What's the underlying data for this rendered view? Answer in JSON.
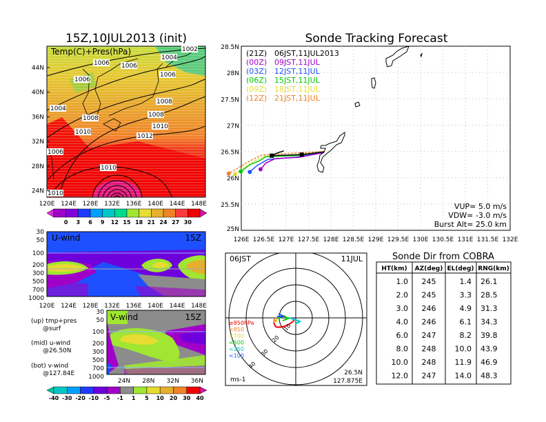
{
  "left_map": {
    "title": "15Z,10JUL2013 (init)",
    "subtitle": "Temp(C)+Pres(hPa)",
    "lat_ticks": [
      "44N",
      "40N",
      "36N",
      "32N",
      "28N",
      "24N"
    ],
    "lon_ticks": [
      "120E",
      "124E",
      "128E",
      "132E",
      "136E",
      "140E",
      "144E",
      "148E"
    ],
    "colorbar_labels": [
      "0",
      "3",
      "6",
      "9",
      "12",
      "15",
      "18",
      "21",
      "24",
      "27",
      "30"
    ],
    "colorbar_colors": [
      "#a000c8",
      "#8200dc",
      "#1e3cff",
      "#00a0ff",
      "#00c8c8",
      "#00dc8c",
      "#a0e632",
      "#e6dc32",
      "#e6af2d",
      "#f08228",
      "#fa3c3c",
      "#f00000"
    ],
    "contour_labels": [
      "1002",
      "1004",
      "1006",
      "1006",
      "1006",
      "1006",
      "1004",
      "1008",
      "1008",
      "1010",
      "1008",
      "1010",
      "1012",
      "1006",
      "1010",
      "1010"
    ]
  },
  "u_wind": {
    "title": "U-wind",
    "time": "15Z",
    "p_ticks": [
      "30",
      "50",
      "100",
      "200",
      "300",
      "500",
      "700",
      "1000"
    ],
    "lon_ticks": [
      "120E",
      "124E",
      "128E",
      "132E",
      "136E",
      "140E",
      "144E",
      "148E"
    ]
  },
  "v_wind": {
    "title": "V-wind",
    "time": "15Z",
    "p_ticks": [
      "30",
      "50",
      "100",
      "200",
      "300",
      "500",
      "700",
      "1000"
    ],
    "lat_ticks": [
      "24N",
      "28N",
      "32N",
      "36N"
    ]
  },
  "panel_legend": {
    "up": "(up) tmp+pres",
    "up_sub": "@surf",
    "mid": "(mid) u-wind",
    "mid_sub": "@26.50N",
    "bot": "(bot) v-wind",
    "bot_sub": "@127.84E"
  },
  "wind_colorbar": {
    "labels": [
      "-40",
      "-30",
      "-20",
      "-10",
      "-5",
      "-1",
      "1",
      "5",
      "10",
      "20",
      "30",
      "40"
    ],
    "colors": [
      "#00c8c8",
      "#00a0ff",
      "#1e3cff",
      "#6e00dc",
      "#a000c8",
      "#8c8c8c",
      "#a0e632",
      "#e6dc32",
      "#e6af2d",
      "#f08228",
      "#f00000"
    ]
  },
  "chart_data": {
    "type": "line",
    "title": "Sonde Tracking Forecast",
    "xlim": [
      126,
      132
    ],
    "ylim": [
      25,
      28.5
    ],
    "x_ticks": [
      "126E",
      "126.5E",
      "127E",
      "127.5E",
      "128E",
      "128.5E",
      "129E",
      "129.5E",
      "130E",
      "130.5E",
      "131E",
      "131.5E",
      "132E"
    ],
    "y_ticks": [
      "28.5N",
      "28N",
      "27.5N",
      "27N",
      "26.5N",
      "26N",
      "25.5N",
      "25N"
    ],
    "series": [
      {
        "name": "(21Z)",
        "label": "06JST,11JUL2013",
        "color": "#000000",
        "points": [
          [
            127.85,
            26.49
          ],
          [
            127.35,
            26.44
          ],
          [
            126.68,
            26.42
          ],
          [
            126.8,
            26.47
          ],
          [
            126.95,
            26.51
          ]
        ]
      },
      {
        "name": "(00Z)",
        "label": "09JST,11JUL",
        "color": "#a000c8",
        "points": [
          [
            127.85,
            26.48
          ],
          [
            127.3,
            26.39
          ],
          [
            126.75,
            26.36
          ],
          [
            126.55,
            26.28
          ],
          [
            126.43,
            26.16
          ]
        ]
      },
      {
        "name": "(03Z)",
        "label": "12JST,11JUL",
        "color": "#1e50ff",
        "points": [
          [
            127.85,
            26.48
          ],
          [
            127.22,
            26.39
          ],
          [
            126.6,
            26.35
          ],
          [
            126.35,
            26.23
          ],
          [
            126.19,
            26.11
          ]
        ]
      },
      {
        "name": "(06Z)",
        "label": "15JST,11JUL",
        "color": "#00c800",
        "points": [
          [
            127.85,
            26.48
          ],
          [
            127.2,
            26.42
          ],
          [
            126.55,
            26.4
          ],
          [
            126.4,
            26.32
          ],
          [
            126.2,
            26.25
          ],
          [
            125.99,
            26.12
          ]
        ]
      },
      {
        "name": "(09Z)",
        "label": "18JST,11JUL",
        "color": "#e6dc32",
        "points": [
          [
            127.85,
            26.49
          ],
          [
            127.1,
            26.43
          ],
          [
            126.5,
            26.41
          ],
          [
            126.2,
            26.27
          ],
          [
            125.86,
            26.07
          ]
        ]
      },
      {
        "name": "(12Z)",
        "label": "21JST,11JUL",
        "color": "#f08228",
        "points": [
          [
            127.85,
            26.5
          ],
          [
            127.0,
            26.46
          ],
          [
            126.45,
            26.43
          ],
          [
            126.15,
            26.3
          ],
          [
            125.72,
            26.08
          ]
        ]
      }
    ],
    "params": [
      "VUP=  5.0  m/s",
      "VDW=  -3.0  m/s",
      "Burst Alt=  25.0  km"
    ]
  },
  "hodograph": {
    "time": "06JST",
    "date": "11JUL",
    "ring_labels": [
      "10",
      "20",
      "30",
      "40"
    ],
    "levels": [
      {
        "label": "≥850hPa",
        "color": "#f00000"
      },
      {
        "label": "<850",
        "color": "#f08228"
      },
      {
        "label": "<700",
        "color": "#e6dc32"
      },
      {
        "label": "<500",
        "color": "#00c800"
      },
      {
        "label": "<250",
        "color": "#00c8c8"
      },
      {
        "label": "<100",
        "color": "#1e50ff"
      }
    ],
    "units": "ms-1",
    "lat": "26.5N",
    "lon": "127.875E"
  },
  "sonde_table": {
    "title": "Sonde Dir from COBRA",
    "headers": [
      "HT(km)",
      "AZ(deg)",
      "EL(deg)",
      "RNG(km)"
    ],
    "rows": [
      [
        "1.0",
        "245",
        "1.4",
        "26.1"
      ],
      [
        "2.0",
        "245",
        "3.3",
        "28.5"
      ],
      [
        "3.0",
        "246",
        "4.9",
        "31.3"
      ],
      [
        "4.0",
        "246",
        "6.1",
        "34.3"
      ],
      [
        "6.0",
        "247",
        "8.2",
        "39.8"
      ],
      [
        "8.0",
        "248",
        "10.0",
        "43.9"
      ],
      [
        "10.0",
        "248",
        "11.9",
        "46.9"
      ],
      [
        "12.0",
        "247",
        "14.0",
        "48.3"
      ]
    ]
  }
}
